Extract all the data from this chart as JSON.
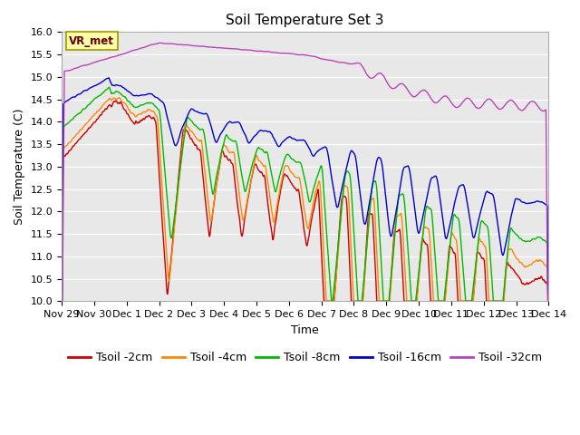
{
  "title": "Soil Temperature Set 3",
  "xlabel": "Time",
  "ylabel": "Soil Temperature (C)",
  "ylim": [
    10.0,
    16.0
  ],
  "yticks": [
    10.0,
    10.5,
    11.0,
    11.5,
    12.0,
    12.5,
    13.0,
    13.5,
    14.0,
    14.5,
    15.0,
    15.5,
    16.0
  ],
  "colors": {
    "Tsoil -2cm": "#cc0000",
    "Tsoil -4cm": "#ff8800",
    "Tsoil -8cm": "#00bb00",
    "Tsoil -16cm": "#0000cc",
    "Tsoil -32cm": "#bb44bb"
  },
  "legend_labels": [
    "Tsoil -2cm",
    "Tsoil -4cm",
    "Tsoil -8cm",
    "Tsoil -16cm",
    "Tsoil -32cm"
  ],
  "xtick_labels": [
    "Nov 29",
    "Nov 30",
    "Dec 1",
    "Dec 2",
    "Dec 3",
    "Dec 4",
    "Dec 5",
    "Dec 6",
    "Dec 7",
    "Dec 8",
    "Dec 9",
    "Dec 10",
    "Dec 11",
    "Dec 12",
    "Dec 13",
    "Dec 14"
  ],
  "annotation_text": "VR_met",
  "annotation_bg": "#ffffaa",
  "annotation_edge": "#999900",
  "annotation_color": "#660000",
  "background_color": "#e8e8e8",
  "title_fontsize": 11,
  "axis_fontsize": 9,
  "tick_fontsize": 8,
  "legend_fontsize": 9
}
